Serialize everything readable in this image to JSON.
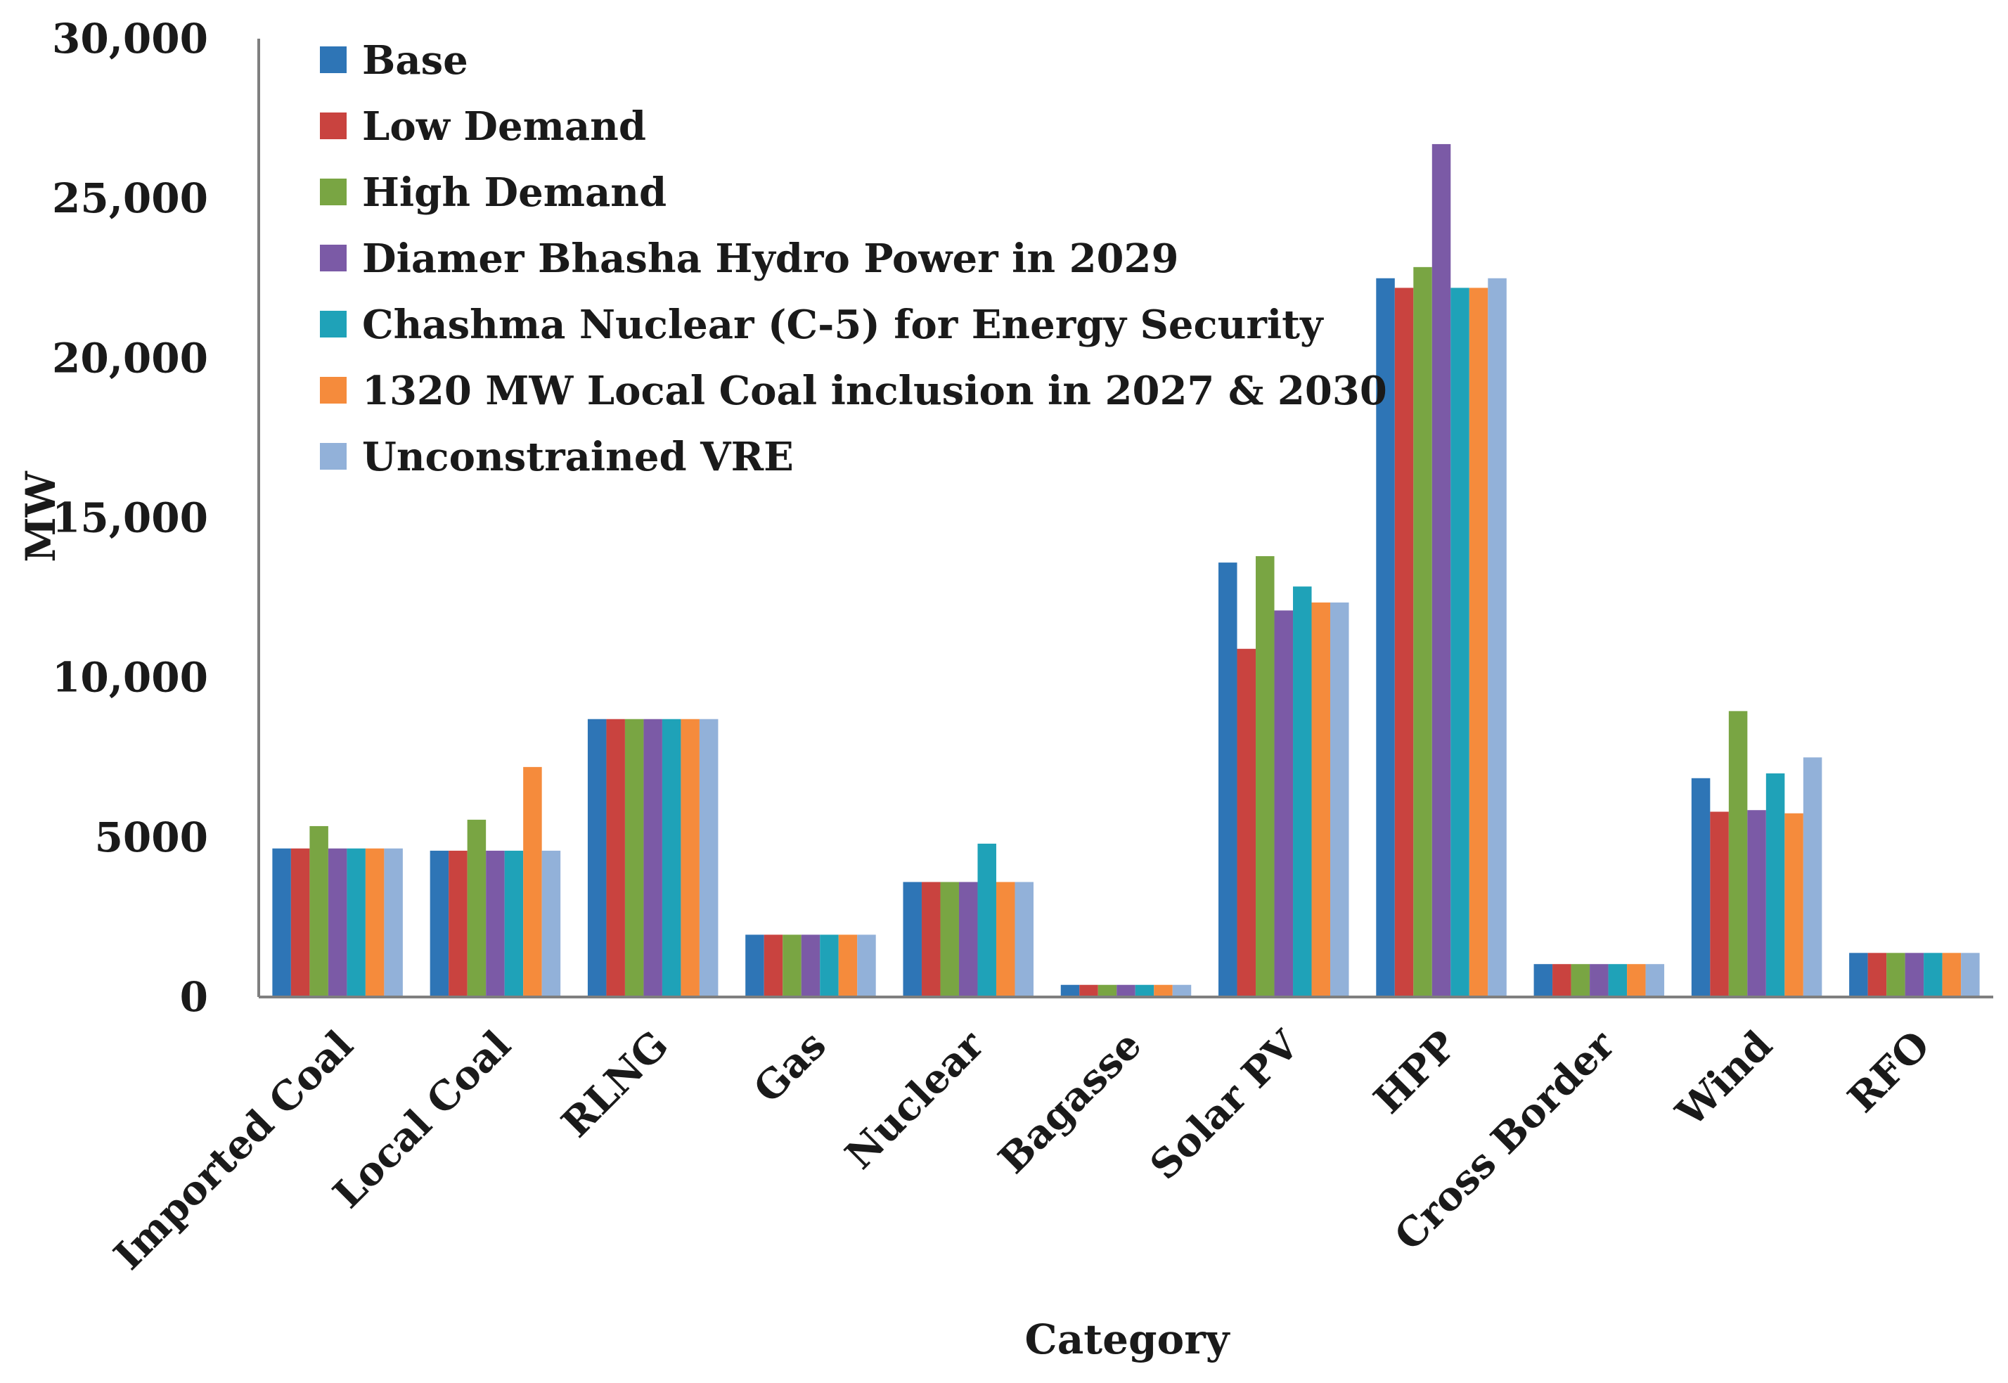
{
  "chart_data": {
    "type": "bar",
    "title": "",
    "xlabel": "Category",
    "ylabel": "MW",
    "ylim": [
      0,
      30000
    ],
    "yticks": [
      0,
      5000,
      10000,
      15000,
      20000,
      25000,
      30000
    ],
    "ytick_labels": [
      "0",
      "5000",
      "10,000",
      "15,000",
      "20,000",
      "25,000",
      "30,000"
    ],
    "legend_position": "top-left",
    "categories": [
      "Imported Coal",
      "Local Coal",
      "RLNG",
      "Gas",
      "Nuclear",
      "Bagasse",
      "Solar PV",
      "HPP",
      "Cross Border",
      "Wind",
      "RFO"
    ],
    "series": [
      {
        "name": "Base",
        "color": "#2e75b6",
        "values": [
          4650,
          4580,
          8700,
          1950,
          3600,
          380,
          13600,
          22500,
          1030,
          6850,
          1380
        ]
      },
      {
        "name": "Low Demand",
        "color": "#c9433f",
        "values": [
          4650,
          4580,
          8700,
          1950,
          3600,
          380,
          10900,
          22200,
          1030,
          5800,
          1380
        ]
      },
      {
        "name": "High Demand",
        "color": "#79a543",
        "values": [
          5350,
          5550,
          8700,
          1950,
          3600,
          380,
          13800,
          22850,
          1030,
          8950,
          1380
        ]
      },
      {
        "name": "Diamer Bhasha Hydro Power in 2029",
        "color": "#7b5aa6",
        "values": [
          4650,
          4580,
          8700,
          1950,
          3600,
          380,
          12100,
          26700,
          1030,
          5850,
          1380
        ]
      },
      {
        "name": "Chashma Nuclear (C-5) for Energy Security",
        "color": "#1fa2b8",
        "values": [
          4650,
          4580,
          8700,
          1950,
          4800,
          380,
          12850,
          22200,
          1030,
          7000,
          1380
        ]
      },
      {
        "name": "1320 MW Local Coal inclusion in 2027 & 2030",
        "color": "#f58b3c",
        "values": [
          4650,
          7200,
          8700,
          1950,
          3600,
          380,
          12350,
          22200,
          1030,
          5750,
          1380
        ]
      },
      {
        "name": "Unconstrained VRE",
        "color": "#92b1d9",
        "values": [
          4650,
          4580,
          8700,
          1950,
          3600,
          380,
          12350,
          22500,
          1030,
          7500,
          1380
        ]
      }
    ]
  }
}
